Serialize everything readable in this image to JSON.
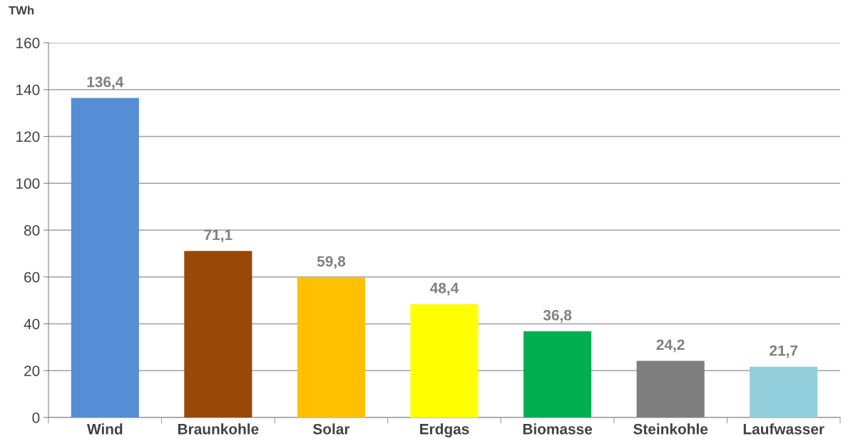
{
  "chart_data": {
    "type": "bar",
    "ylabel": "TWh",
    "categories": [
      "Wind",
      "Braunkohle",
      "Solar",
      "Erdgas",
      "Biomasse",
      "Steinkohle",
      "Laufwasser"
    ],
    "values": [
      136.4,
      71.1,
      59.8,
      48.4,
      36.8,
      24.2,
      21.7
    ],
    "value_labels": [
      "136,4",
      "71,1",
      "59,8",
      "48,4",
      "36,8",
      "24,2",
      "21,7"
    ],
    "colors": [
      "#558ed5",
      "#984807",
      "#ffc000",
      "#ffff00",
      "#00b050",
      "#7f7f7f",
      "#92cddc"
    ],
    "ylim": [
      0,
      160
    ],
    "yticks": [
      0,
      20,
      40,
      60,
      80,
      100,
      120,
      140,
      160
    ],
    "grid": "y",
    "legend": false
  }
}
